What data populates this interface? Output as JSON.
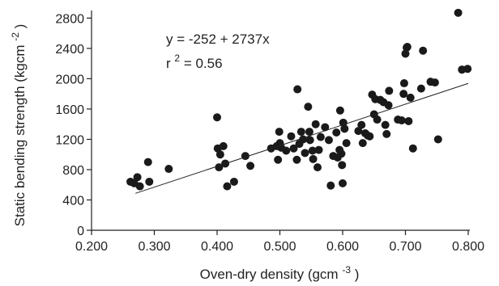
{
  "chart_data": {
    "type": "scatter",
    "title": "",
    "xlabel": {
      "main": "Oven-dry density (gcm",
      "sup": "-3",
      "tail": " )"
    },
    "ylabel": {
      "main": "Static bending strength (kgcm",
      "sup": "-2",
      "tail": ")"
    },
    "xlim": [
      0.2,
      0.8
    ],
    "ylim": [
      0,
      2900
    ],
    "xticks": [
      0.2,
      0.3,
      0.4,
      0.5,
      0.6,
      0.7,
      0.8
    ],
    "xtick_labels": [
      "0.200",
      "0.300",
      "0.400",
      "0.500",
      "0.600",
      "0.700",
      "0.800"
    ],
    "yticks": [
      0,
      400,
      800,
      1200,
      1600,
      2000,
      2400,
      2800
    ],
    "ytick_labels": [
      "0",
      "400",
      "800",
      "1200",
      "1600",
      "2000",
      "2400",
      "2800"
    ],
    "grid": false,
    "legend": "none",
    "annotations": {
      "equation": "y = -252 + 2737x",
      "r2_base": "r",
      "r2_sup": "2",
      "r2_tail": " = 0.56"
    },
    "regression": {
      "intercept": -252,
      "slope": 2737,
      "x_range": [
        0.27,
        0.8
      ]
    },
    "marker_color": "#1a1a1a",
    "points": [
      [
        0.262,
        640
      ],
      [
        0.268,
        620
      ],
      [
        0.273,
        700
      ],
      [
        0.277,
        580
      ],
      [
        0.29,
        900
      ],
      [
        0.292,
        640
      ],
      [
        0.323,
        810
      ],
      [
        0.4,
        1490
      ],
      [
        0.401,
        1080
      ],
      [
        0.403,
        830
      ],
      [
        0.405,
        1000
      ],
      [
        0.41,
        1110
      ],
      [
        0.413,
        880
      ],
      [
        0.416,
        580
      ],
      [
        0.427,
        640
      ],
      [
        0.445,
        980
      ],
      [
        0.453,
        850
      ],
      [
        0.486,
        1080
      ],
      [
        0.495,
        1110
      ],
      [
        0.497,
        930
      ],
      [
        0.499,
        1300
      ],
      [
        0.5,
        1150
      ],
      [
        0.502,
        1090
      ],
      [
        0.51,
        1050
      ],
      [
        0.518,
        1240
      ],
      [
        0.522,
        1080
      ],
      [
        0.527,
        930
      ],
      [
        0.528,
        1860
      ],
      [
        0.531,
        1140
      ],
      [
        0.534,
        1300
      ],
      [
        0.537,
        1200
      ],
      [
        0.54,
        1020
      ],
      [
        0.545,
        1630
      ],
      [
        0.547,
        1300
      ],
      [
        0.548,
        1190
      ],
      [
        0.552,
        1050
      ],
      [
        0.553,
        940
      ],
      [
        0.557,
        1400
      ],
      [
        0.56,
        830
      ],
      [
        0.562,
        1060
      ],
      [
        0.565,
        1230
      ],
      [
        0.572,
        1360
      ],
      [
        0.578,
        1190
      ],
      [
        0.581,
        590
      ],
      [
        0.585,
        980
      ],
      [
        0.59,
        1290
      ],
      [
        0.592,
        960
      ],
      [
        0.595,
        1060
      ],
      [
        0.596,
        1580
      ],
      [
        0.598,
        1010
      ],
      [
        0.599,
        860
      ],
      [
        0.6,
        620
      ],
      [
        0.601,
        1420
      ],
      [
        0.603,
        1340
      ],
      [
        0.606,
        1150
      ],
      [
        0.625,
        1310
      ],
      [
        0.63,
        1390
      ],
      [
        0.632,
        1150
      ],
      [
        0.636,
        1280
      ],
      [
        0.64,
        1250
      ],
      [
        0.643,
        1240
      ],
      [
        0.647,
        1790
      ],
      [
        0.65,
        1530
      ],
      [
        0.652,
        1730
      ],
      [
        0.655,
        1460
      ],
      [
        0.66,
        1720
      ],
      [
        0.665,
        1690
      ],
      [
        0.668,
        1390
      ],
      [
        0.67,
        1270
      ],
      [
        0.673,
        1650
      ],
      [
        0.674,
        1840
      ],
      [
        0.688,
        1460
      ],
      [
        0.694,
        1450
      ],
      [
        0.697,
        1800
      ],
      [
        0.698,
        1940
      ],
      [
        0.7,
        2330
      ],
      [
        0.702,
        2410
      ],
      [
        0.703,
        2420
      ],
      [
        0.705,
        1440
      ],
      [
        0.708,
        1750
      ],
      [
        0.712,
        1080
      ],
      [
        0.725,
        1870
      ],
      [
        0.728,
        2370
      ],
      [
        0.74,
        1960
      ],
      [
        0.747,
        1950
      ],
      [
        0.752,
        1200
      ],
      [
        0.784,
        2870
      ],
      [
        0.79,
        2120
      ],
      [
        0.799,
        2130
      ]
    ]
  }
}
